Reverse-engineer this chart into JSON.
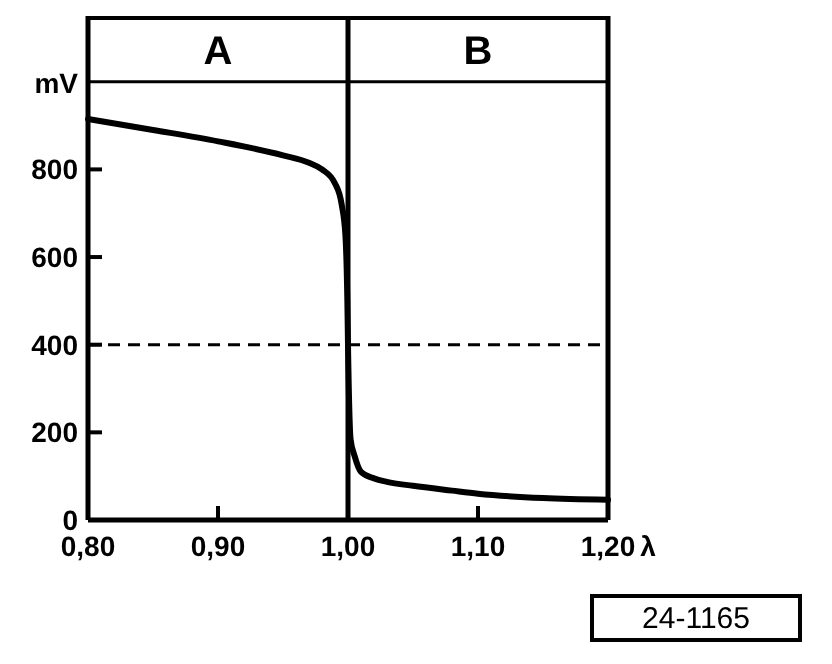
{
  "chart_data": {
    "type": "line",
    "ylabel": "mV",
    "xlabel": "λ",
    "x": [
      0.8,
      0.85,
      0.9,
      0.95,
      0.97,
      0.98,
      0.99,
      0.995,
      0.998,
      0.9995,
      1.0,
      1.002,
      1.005,
      1.01,
      1.02,
      1.03,
      1.05,
      1.08,
      1.1,
      1.15,
      1.2
    ],
    "series": [
      {
        "color": "#000000",
        "values": [
          915,
          890,
          864,
          832,
          815,
          800,
          768,
          722,
          650,
          500,
          400,
          184,
          147,
          110,
          95,
          87,
          78,
          67,
          60,
          50,
          46
        ]
      }
    ],
    "xlim": [
      0.8,
      1.2
    ],
    "ylim": [
      0,
      1150
    ],
    "xticks": [
      {
        "value": 0.8,
        "label": "0,80"
      },
      {
        "value": 0.9,
        "label": "0,90"
      },
      {
        "value": 1.0,
        "label": "1,00"
      },
      {
        "value": 1.1,
        "label": "1,10"
      },
      {
        "value": 1.2,
        "label": "1,20"
      }
    ],
    "yticks": [
      0,
      200,
      400,
      600,
      800
    ],
    "ref_lines": [
      {
        "axis": "x",
        "value": 1.0,
        "line_style": "solid"
      },
      {
        "axis": "y",
        "value": 400,
        "line_style": "dashed"
      },
      {
        "axis": "y",
        "value": 1000,
        "line_style": "solid"
      }
    ],
    "annotations": [
      "A",
      "B",
      "24-1165"
    ],
    "marker": "none",
    "line_style": "solid",
    "grid": false
  }
}
